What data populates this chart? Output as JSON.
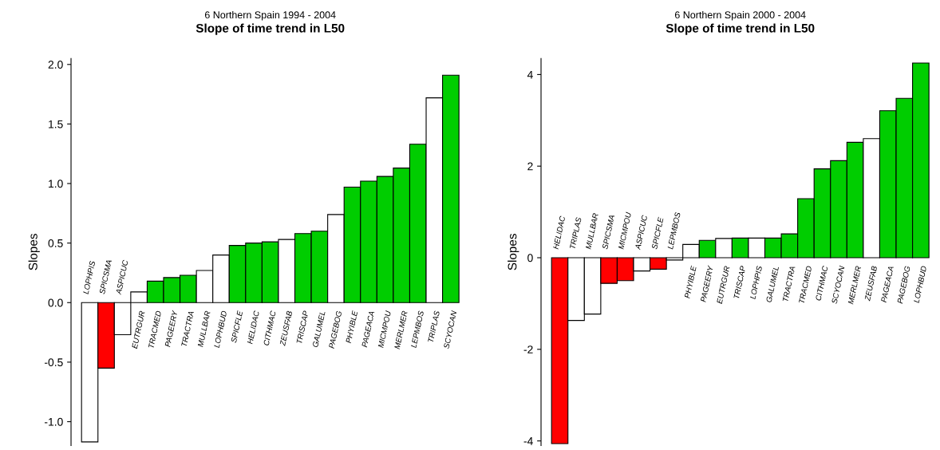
{
  "chart_data": [
    {
      "type": "bar",
      "title": "6 Northern Spain 1994 - 2004",
      "subtitle": "Slope of time trend in L50",
      "ylabel": "Slopes",
      "categories": [
        "LOPHPIS",
        "SPICSMA",
        "ASPICUC",
        "EUTRGUR",
        "TRACMED",
        "PAGEERY",
        "TRACTRA",
        "MULLBAR",
        "LOPHBUD",
        "SPICFLE",
        "HELIDAC",
        "CITHMAC",
        "ZEUSFAB",
        "TRISCAP",
        "GALUMEL",
        "PAGEBOG",
        "PHYIBLE",
        "PAGEACA",
        "MICMPOU",
        "MERLMER",
        "LEPMBOS",
        "TRIPLAS",
        "SCYOCAN"
      ],
      "values": [
        -1.17,
        -0.55,
        -0.27,
        0.09,
        0.18,
        0.21,
        0.23,
        0.27,
        0.4,
        0.48,
        0.5,
        0.51,
        0.53,
        0.58,
        0.6,
        0.74,
        0.97,
        1.02,
        1.06,
        1.13,
        1.33,
        1.72,
        1.91
      ],
      "colors": [
        "#ffffff",
        "#ff0000",
        "#ffffff",
        "#ffffff",
        "#00cd00",
        "#00cd00",
        "#00cd00",
        "#ffffff",
        "#ffffff",
        "#00cd00",
        "#00cd00",
        "#00cd00",
        "#ffffff",
        "#00cd00",
        "#00cd00",
        "#ffffff",
        "#00cd00",
        "#00cd00",
        "#00cd00",
        "#00cd00",
        "#00cd00",
        "#ffffff",
        "#00cd00"
      ],
      "ylim": [
        -1.2,
        2.05
      ],
      "yticks": [
        {
          "value": -1.0,
          "label": "-1.0"
        },
        {
          "value": -0.5,
          "label": "-0.5"
        },
        {
          "value": 0.0,
          "label": "0.0"
        },
        {
          "value": 0.5,
          "label": "0.5"
        },
        {
          "value": 1.0,
          "label": "1.0"
        },
        {
          "value": 1.5,
          "label": "1.5"
        },
        {
          "value": 2.0,
          "label": "2.0"
        }
      ],
      "grid": false,
      "legend": false
    },
    {
      "type": "bar",
      "title": "6 Northern Spain 2000 - 2004",
      "subtitle": "Slope of time trend in L50",
      "ylabel": "Slopes",
      "categories": [
        "HELIDAC",
        "TRIPLAS",
        "MULLBAR",
        "SPICSMA",
        "MICMPOU",
        "ASPICUC",
        "SPICFLE",
        "LEPMBOS",
        "PHYIBLE",
        "PAGEERY",
        "EUTRGUR",
        "TRISCAP",
        "LOPHPIS",
        "GALUMEL",
        "TRACTRA",
        "TRACMED",
        "CITHMAC",
        "SCYOCAN",
        "MERLMER",
        "ZEUSFAB",
        "PAGEACA",
        "PAGEBOG",
        "LOPHBUD"
      ],
      "values": [
        -4.06,
        -1.37,
        -1.23,
        -0.56,
        -0.5,
        -0.29,
        -0.25,
        -0.05,
        0.29,
        0.38,
        0.42,
        0.43,
        0.43,
        0.43,
        0.52,
        1.29,
        1.94,
        2.12,
        2.52,
        2.6,
        3.21,
        3.48,
        4.25
      ],
      "colors": [
        "#ff0000",
        "#ffffff",
        "#ffffff",
        "#ff0000",
        "#ff0000",
        "#ffffff",
        "#ff0000",
        "#ffffff",
        "#ffffff",
        "#00cd00",
        "#ffffff",
        "#00cd00",
        "#ffffff",
        "#00cd00",
        "#00cd00",
        "#00cd00",
        "#00cd00",
        "#00cd00",
        "#00cd00",
        "#ffffff",
        "#00cd00",
        "#00cd00",
        "#00cd00"
      ],
      "ylim": [
        -4.1,
        4.35
      ],
      "yticks": [
        -4,
        -2,
        0,
        2,
        4
      ],
      "grid": false,
      "legend": false
    }
  ]
}
